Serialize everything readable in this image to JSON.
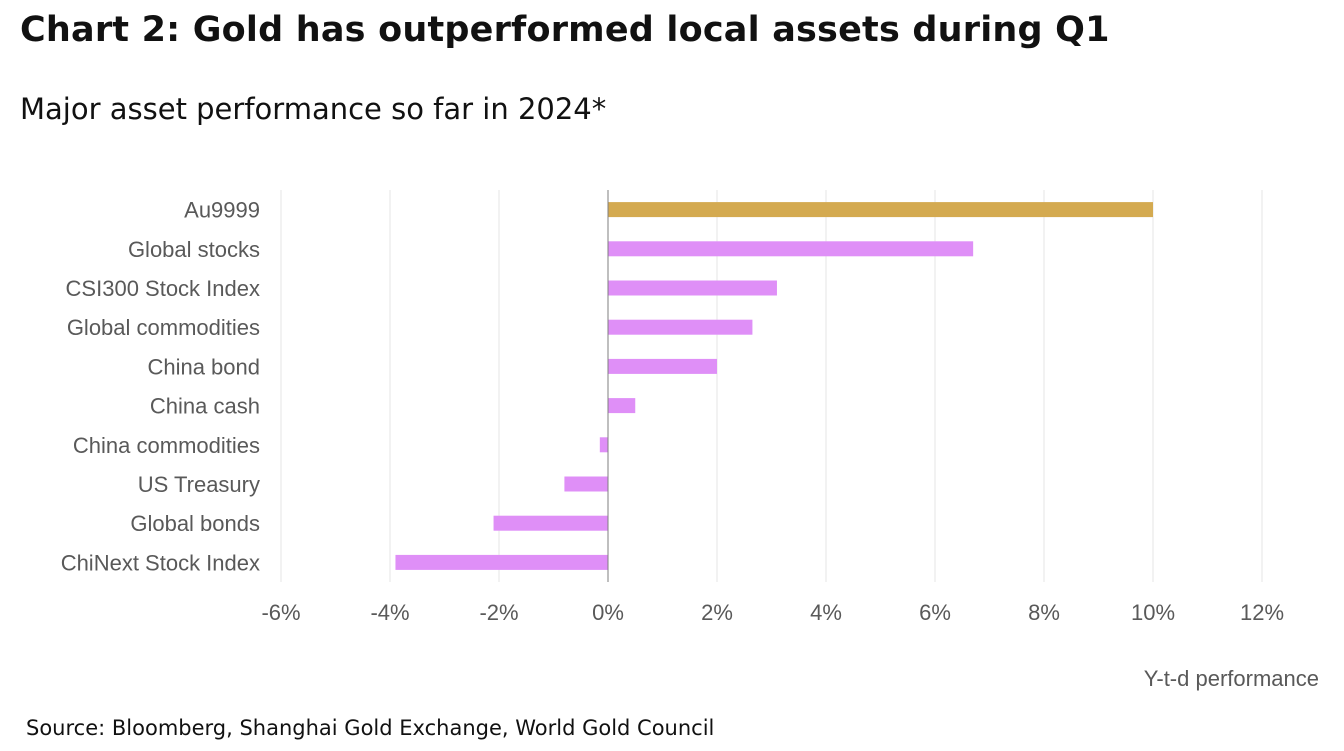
{
  "title": "Chart 2: Gold has outperformed local assets during Q1",
  "subtitle": "Major asset performance so far in 2024*",
  "source": "Source: Bloomberg, Shanghai Gold Exchange, World Gold Council",
  "colors": {
    "gold": "#d4aa50",
    "other": "#df8ff7",
    "grid": "#e6e6e6",
    "zero_line": "#7f7f7f",
    "label": "#595959"
  },
  "chart_data": {
    "type": "bar",
    "orientation": "horizontal",
    "title": "Chart 2: Gold has outperformed local assets during Q1",
    "subtitle": "Major asset performance so far in 2024*",
    "xlabel": "Y-t-d performance",
    "ylabel": "",
    "xlim": [
      -6,
      12
    ],
    "xticks": [
      -6,
      -4,
      -2,
      0,
      2,
      4,
      6,
      8,
      10,
      12
    ],
    "xtick_labels": [
      "-6%",
      "-4%",
      "-2%",
      "0%",
      "2%",
      "4%",
      "6%",
      "8%",
      "10%",
      "12%"
    ],
    "grid": true,
    "unit": "%",
    "categories": [
      "Au9999",
      "Global stocks",
      "CSI300 Stock Index",
      "Global commodities",
      "China bond",
      "China cash",
      "China commodities",
      "US Treasury",
      "Global bonds",
      "ChiNext Stock Index"
    ],
    "values": [
      10.0,
      6.7,
      3.1,
      2.65,
      2.0,
      0.5,
      -0.15,
      -0.8,
      -2.1,
      -3.9
    ],
    "highlight": [
      "gold",
      "other",
      "other",
      "other",
      "other",
      "other",
      "other",
      "other",
      "other",
      "other"
    ]
  }
}
